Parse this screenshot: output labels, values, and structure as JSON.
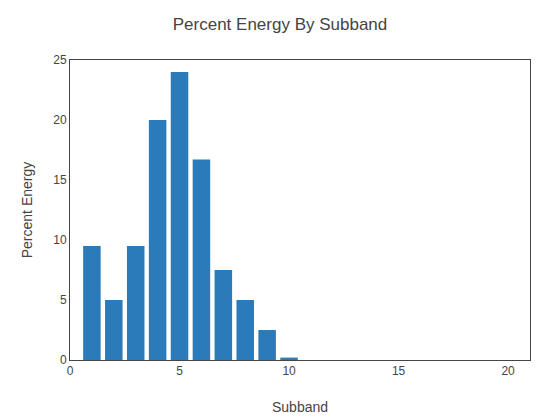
{
  "chart_data": {
    "type": "bar",
    "title": "Percent Energy By Subband",
    "xlabel": "Subband",
    "ylabel": "Percent Energy",
    "x": [
      1,
      2,
      3,
      4,
      5,
      6,
      7,
      8,
      9,
      10
    ],
    "values": [
      9.5,
      5.0,
      9.5,
      20.0,
      24.0,
      16.7,
      7.5,
      5.0,
      2.5,
      0.2
    ],
    "color": "#2b7bba",
    "xlim": [
      0,
      21
    ],
    "xticks": [
      0,
      5,
      10,
      15,
      20
    ],
    "ylim": [
      0,
      25
    ],
    "yticks": [
      0,
      5,
      10,
      15,
      20,
      25
    ],
    "grid": false
  }
}
